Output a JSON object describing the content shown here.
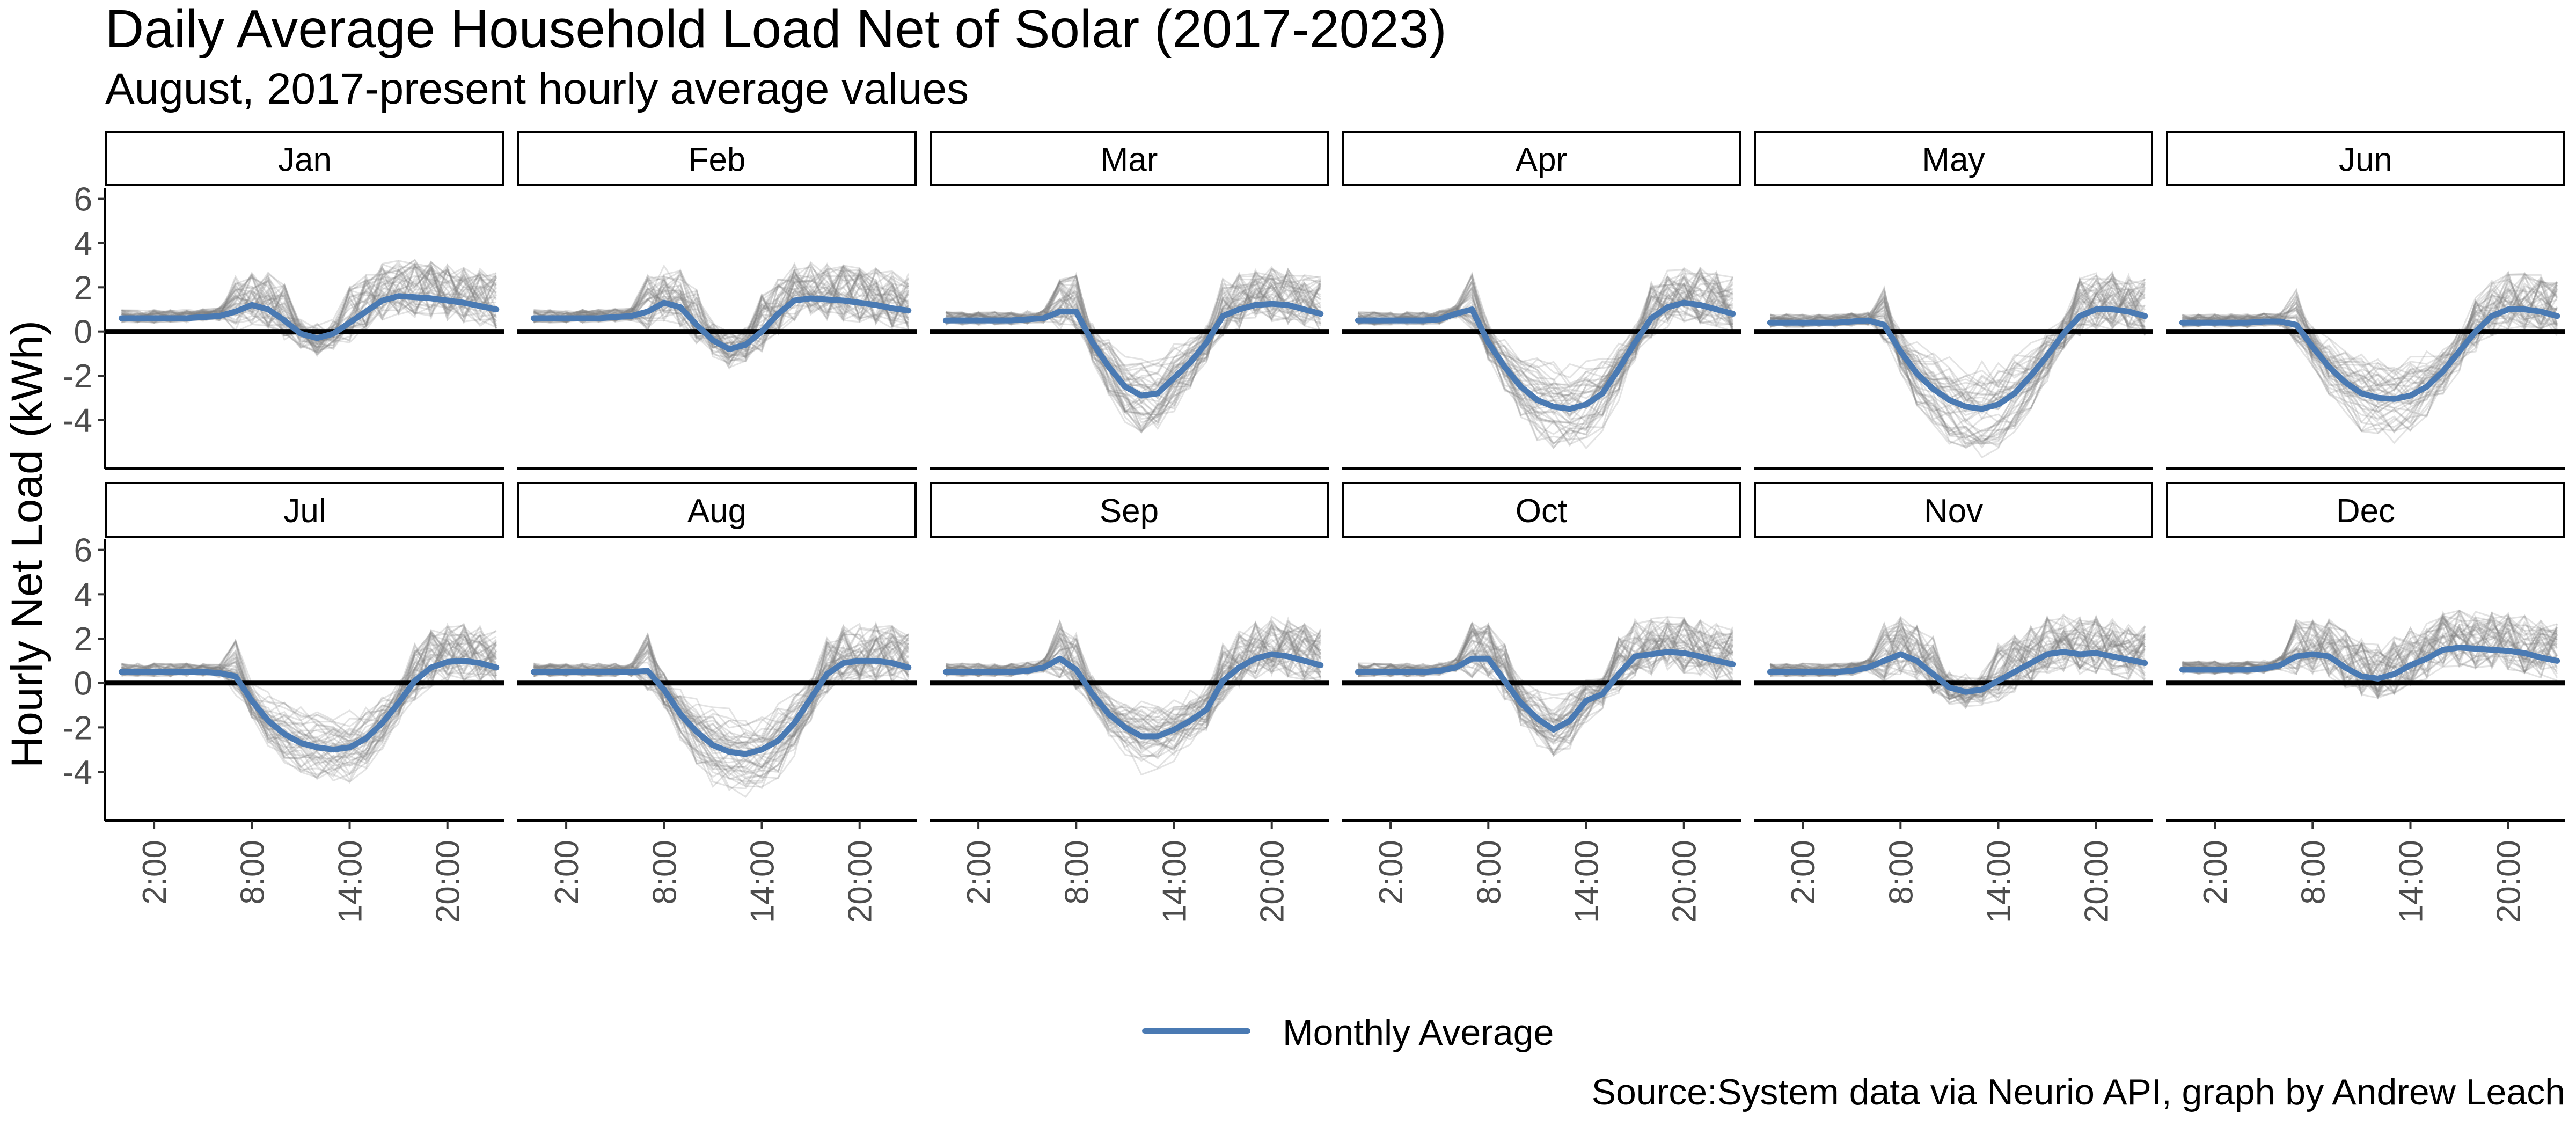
{
  "chart_data": {
    "type": "line",
    "title": "Daily Average Household Load Net of Solar (2017-2023)",
    "subtitle": "August, 2017-present hourly average values",
    "ylabel": "Hourly Net Load (kWh)",
    "xlabel": "",
    "caption": "Source:System data via Neurio API, graph by Andrew Leach",
    "legend": {
      "position": "bottom",
      "label": "Monthly Average",
      "color": "#4a7ab3"
    },
    "colors": {
      "average": "#4a7ab3",
      "daily": "#808080",
      "zero_line": "#000000"
    },
    "x": [
      0,
      1,
      2,
      3,
      4,
      5,
      6,
      7,
      8,
      9,
      10,
      11,
      12,
      13,
      14,
      15,
      16,
      17,
      18,
      19,
      20,
      21,
      22,
      23
    ],
    "xlim": [
      -1,
      23.5
    ],
    "x_ticks": [
      2,
      8,
      14,
      20
    ],
    "x_tick_labels": [
      "2:00",
      "8:00",
      "14:00",
      "20:00"
    ],
    "ylim": [
      -6.2,
      6.5
    ],
    "y_ticks": [
      -4,
      -2,
      0,
      2,
      4,
      6
    ],
    "y_tick_labels": [
      "-4",
      "-2",
      "0",
      "2",
      "4",
      "6"
    ],
    "zero_line": 0,
    "grid": false,
    "panels": [
      {
        "label": "Jan",
        "average": [
          0.6,
          0.6,
          0.6,
          0.6,
          0.6,
          0.65,
          0.7,
          0.9,
          1.2,
          1.0,
          0.5,
          -0.1,
          -0.3,
          -0.1,
          0.4,
          0.9,
          1.4,
          1.6,
          1.55,
          1.5,
          1.4,
          1.3,
          1.15,
          1.0
        ]
      },
      {
        "label": "Feb",
        "average": [
          0.6,
          0.6,
          0.6,
          0.6,
          0.6,
          0.65,
          0.7,
          0.9,
          1.3,
          1.1,
          0.3,
          -0.4,
          -0.8,
          -0.6,
          0.0,
          0.8,
          1.4,
          1.5,
          1.45,
          1.4,
          1.3,
          1.2,
          1.05,
          0.95
        ]
      },
      {
        "label": "Mar",
        "average": [
          0.5,
          0.5,
          0.5,
          0.5,
          0.5,
          0.55,
          0.6,
          0.9,
          0.9,
          -0.5,
          -1.6,
          -2.5,
          -2.9,
          -2.8,
          -2.1,
          -1.4,
          -0.5,
          0.7,
          1.0,
          1.2,
          1.25,
          1.2,
          1.0,
          0.8
        ]
      },
      {
        "label": "Apr",
        "average": [
          0.5,
          0.5,
          0.5,
          0.5,
          0.5,
          0.55,
          0.8,
          1.0,
          -0.5,
          -1.6,
          -2.5,
          -3.1,
          -3.4,
          -3.5,
          -3.3,
          -2.8,
          -1.7,
          -0.5,
          0.6,
          1.1,
          1.3,
          1.2,
          1.0,
          0.8
        ]
      },
      {
        "label": "May",
        "average": [
          0.4,
          0.4,
          0.4,
          0.4,
          0.4,
          0.45,
          0.5,
          0.3,
          -0.9,
          -1.9,
          -2.6,
          -3.1,
          -3.4,
          -3.5,
          -3.3,
          -2.8,
          -2.0,
          -1.1,
          -0.1,
          0.7,
          1.0,
          1.0,
          0.9,
          0.7
        ]
      },
      {
        "label": "Jun",
        "average": [
          0.4,
          0.4,
          0.4,
          0.4,
          0.4,
          0.45,
          0.45,
          0.3,
          -0.7,
          -1.6,
          -2.3,
          -2.8,
          -3.0,
          -3.05,
          -2.9,
          -2.5,
          -1.8,
          -0.9,
          0.0,
          0.7,
          1.0,
          1.0,
          0.9,
          0.7
        ]
      },
      {
        "label": "Jul",
        "average": [
          0.5,
          0.5,
          0.5,
          0.5,
          0.5,
          0.5,
          0.45,
          0.3,
          -0.8,
          -1.7,
          -2.3,
          -2.7,
          -2.9,
          -3.0,
          -2.9,
          -2.5,
          -1.8,
          -0.9,
          0.1,
          0.7,
          0.95,
          1.0,
          0.9,
          0.7
        ]
      },
      {
        "label": "Aug",
        "average": [
          0.5,
          0.5,
          0.5,
          0.5,
          0.5,
          0.5,
          0.5,
          0.55,
          -0.3,
          -1.4,
          -2.2,
          -2.8,
          -3.1,
          -3.2,
          -3.0,
          -2.6,
          -1.8,
          -0.7,
          0.4,
          0.9,
          1.0,
          1.0,
          0.9,
          0.7
        ]
      },
      {
        "label": "Sep",
        "average": [
          0.5,
          0.5,
          0.5,
          0.5,
          0.5,
          0.55,
          0.7,
          1.1,
          0.6,
          -0.5,
          -1.4,
          -2.0,
          -2.4,
          -2.4,
          -2.1,
          -1.7,
          -1.2,
          0.1,
          0.7,
          1.1,
          1.3,
          1.2,
          1.0,
          0.8
        ]
      },
      {
        "label": "Oct",
        "average": [
          0.5,
          0.5,
          0.5,
          0.5,
          0.5,
          0.55,
          0.7,
          1.1,
          1.1,
          0.1,
          -0.9,
          -1.6,
          -2.1,
          -1.7,
          -0.8,
          -0.5,
          0.4,
          1.2,
          1.3,
          1.4,
          1.35,
          1.2,
          1.0,
          0.85
        ]
      },
      {
        "label": "Nov",
        "average": [
          0.5,
          0.5,
          0.5,
          0.5,
          0.5,
          0.55,
          0.7,
          1.0,
          1.3,
          1.0,
          0.4,
          -0.2,
          -0.4,
          -0.3,
          0.1,
          0.5,
          0.9,
          1.3,
          1.4,
          1.3,
          1.35,
          1.2,
          1.05,
          0.9
        ]
      },
      {
        "label": "Dec",
        "average": [
          0.6,
          0.6,
          0.6,
          0.6,
          0.6,
          0.65,
          0.8,
          1.2,
          1.3,
          1.2,
          0.7,
          0.3,
          0.2,
          0.4,
          0.8,
          1.1,
          1.5,
          1.6,
          1.55,
          1.5,
          1.45,
          1.35,
          1.15,
          1.0
        ]
      }
    ]
  }
}
